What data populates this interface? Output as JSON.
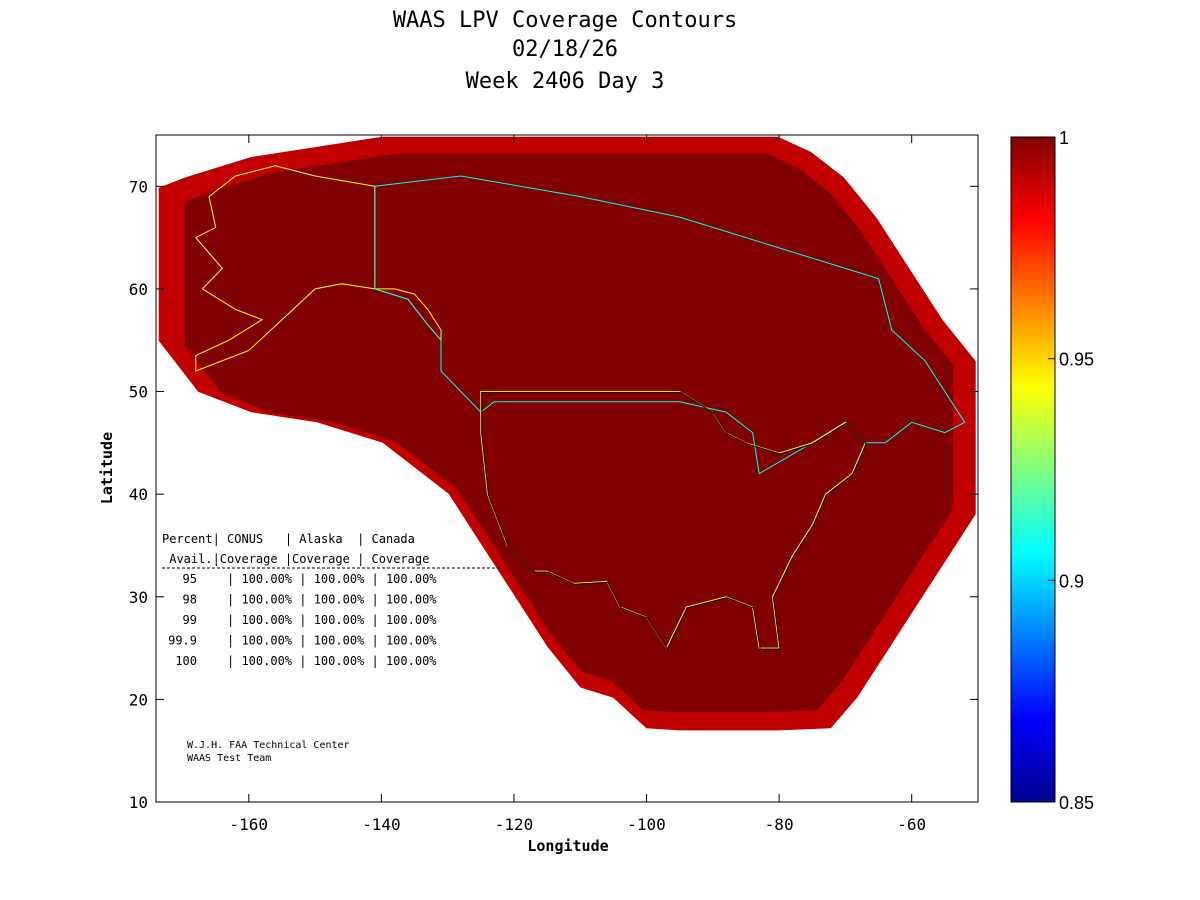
{
  "chart_data": {
    "type": "heatmap",
    "title_lines": [
      "WAAS LPV Coverage Contours",
      "02/18/26",
      "Week 2406 Day 3"
    ],
    "xlabel": "Longitude",
    "ylabel": "Latitude",
    "xlim": [
      -174,
      -50
    ],
    "ylim": [
      10,
      75
    ],
    "xticks": [
      -160,
      -140,
      -120,
      -100,
      -80,
      -60
    ],
    "yticks": [
      20,
      30,
      40,
      50,
      60,
      70
    ],
    "xtick_labels": [
      "-160",
      "-140",
      "-120",
      "-100",
      "-80",
      "-60"
    ],
    "ytick_labels": [
      "20",
      "30",
      "40",
      "50",
      "60",
      "70"
    ],
    "colorbar": {
      "min": 0.85,
      "max": 1,
      "ticks": [
        1,
        0.95,
        0.9,
        0.85
      ],
      "tick_labels": [
        "1",
        "0.95",
        "0.9",
        "0.85"
      ],
      "colormap": [
        "#00008f",
        "#0000ff",
        "#0080ff",
        "#00ffff",
        "#80ff80",
        "#ffff00",
        "#ff8000",
        "#ff0000",
        "#800000"
      ]
    },
    "coverage_colors": {
      "full": "#800000",
      "edge_bands": [
        "#c00000",
        "#ff0000",
        "#ff6000",
        "#ffc000",
        "#ffff00",
        "#80ff80",
        "#00ffff",
        "#0080ff",
        "#0000ff",
        "#00008f"
      ]
    },
    "coverage_table": {
      "header_row1": "Percent| CONUS   | Alaska  | Canada",
      "header_row2": " Avail.|Coverage |Coverage | Coverage",
      "rows": [
        {
          "pct": "95",
          "conus": "100.00%",
          "alaska": "100.00%",
          "canada": "100.00%"
        },
        {
          "pct": "98",
          "conus": "100.00%",
          "alaska": "100.00%",
          "canada": "100.00%"
        },
        {
          "pct": "99",
          "conus": "100.00%",
          "alaska": "100.00%",
          "canada": "100.00%"
        },
        {
          "pct": "99.9",
          "conus": "100.00%",
          "alaska": "100.00%",
          "canada": "100.00%"
        },
        {
          "pct": "100",
          "conus": "100.00%",
          "alaska": "100.00%",
          "canada": "100.00%"
        }
      ]
    },
    "credit_lines": [
      "W.J.H. FAA Technical Center",
      "WAAS Test Team"
    ],
    "coverage_region": [
      [
        -174,
        70
      ],
      [
        -170,
        71
      ],
      [
        -165,
        72
      ],
      [
        -160,
        73
      ],
      [
        -150,
        74
      ],
      [
        -140,
        75
      ],
      [
        -120,
        75
      ],
      [
        -100,
        75
      ],
      [
        -80,
        75
      ],
      [
        -75,
        73.5
      ],
      [
        -70,
        71
      ],
      [
        -65,
        67
      ],
      [
        -60,
        62
      ],
      [
        -55,
        57
      ],
      [
        -50,
        53
      ],
      [
        -50,
        38
      ],
      [
        -53,
        35
      ],
      [
        -58,
        30
      ],
      [
        -63,
        25
      ],
      [
        -68,
        20
      ],
      [
        -72,
        17
      ],
      [
        -80,
        16.8
      ],
      [
        -90,
        16.8
      ],
      [
        -95,
        16.8
      ],
      [
        -100,
        17
      ],
      [
        -105,
        20
      ],
      [
        -110,
        21
      ],
      [
        -115,
        25
      ],
      [
        -120,
        30
      ],
      [
        -125,
        35
      ],
      [
        -130,
        40
      ],
      [
        -140,
        45
      ],
      [
        -150,
        47
      ],
      [
        -160,
        48
      ],
      [
        -168,
        50
      ],
      [
        -174,
        55
      ]
    ],
    "regions": {
      "conus": {
        "color": "#ffff00",
        "points": [
          [
            -125,
            50
          ],
          [
            -95,
            50
          ],
          [
            -90,
            48
          ],
          [
            -88,
            46
          ],
          [
            -85,
            45
          ],
          [
            -80,
            44
          ],
          [
            -75,
            45
          ],
          [
            -70,
            47
          ],
          [
            -67,
            45
          ],
          [
            -69,
            42
          ],
          [
            -73,
            40
          ],
          [
            -75,
            37
          ],
          [
            -78,
            34
          ],
          [
            -81,
            30
          ],
          [
            -80,
            25
          ],
          [
            -83,
            25
          ],
          [
            -84,
            29
          ],
          [
            -88,
            30
          ],
          [
            -94,
            29
          ],
          [
            -97,
            25
          ],
          [
            -100,
            28
          ],
          [
            -104,
            29
          ],
          [
            -106,
            31.5
          ],
          [
            -111,
            31.3
          ],
          [
            -115,
            32.5
          ],
          [
            -117,
            32.5
          ],
          [
            -121,
            35
          ],
          [
            -124,
            40
          ],
          [
            -125,
            46
          ],
          [
            -125,
            50
          ]
        ]
      },
      "alaska": {
        "color": "#ffff00",
        "points": [
          [
            -141,
            70
          ],
          [
            -150,
            71
          ],
          [
            -156,
            72
          ],
          [
            -162,
            71
          ],
          [
            -166,
            69
          ],
          [
            -165,
            66
          ],
          [
            -168,
            65
          ],
          [
            -164,
            62
          ],
          [
            -167,
            60
          ],
          [
            -162,
            58
          ],
          [
            -158,
            57
          ],
          [
            -163,
            55
          ],
          [
            -168,
            53.5
          ],
          [
            -168,
            52
          ],
          [
            -160,
            54
          ],
          [
            -155,
            57
          ],
          [
            -150,
            60
          ],
          [
            -146,
            60.5
          ],
          [
            -141,
            60
          ],
          [
            -136,
            59
          ],
          [
            -133,
            56.5
          ],
          [
            -131,
            55
          ],
          [
            -131,
            56
          ],
          [
            -133,
            58
          ],
          [
            -135,
            59.5
          ],
          [
            -138,
            60
          ],
          [
            -141,
            60
          ],
          [
            -141,
            70
          ]
        ]
      },
      "canada": {
        "color": "#00ffff",
        "points": [
          [
            -141,
            70
          ],
          [
            -128,
            71
          ],
          [
            -110,
            69
          ],
          [
            -95,
            67
          ],
          [
            -80,
            64
          ],
          [
            -65,
            61
          ],
          [
            -63,
            56
          ],
          [
            -58,
            53
          ],
          [
            -52,
            47
          ],
          [
            -55,
            46
          ],
          [
            -60,
            47
          ],
          [
            -64,
            45
          ],
          [
            -67,
            45
          ],
          [
            -70,
            47
          ],
          [
            -75,
            45
          ],
          [
            -79,
            43.5
          ],
          [
            -83,
            42
          ],
          [
            -84,
            46
          ],
          [
            -88,
            48
          ],
          [
            -95,
            49
          ],
          [
            -123,
            49
          ],
          [
            -125,
            48
          ],
          [
            -131,
            52
          ],
          [
            -131,
            55
          ],
          [
            -133,
            56.5
          ],
          [
            -136,
            59
          ],
          [
            -141,
            60
          ],
          [
            -141,
            70
          ]
        ]
      }
    }
  }
}
